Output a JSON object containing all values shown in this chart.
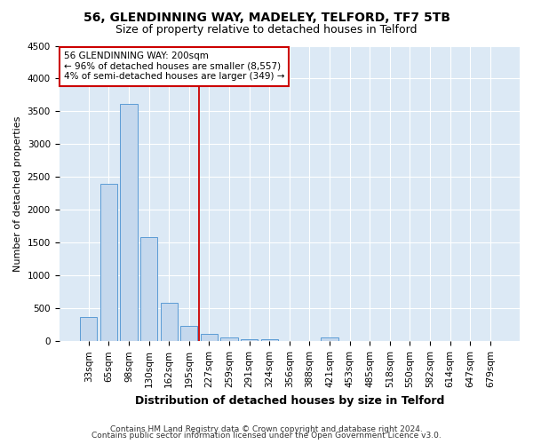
{
  "title1": "56, GLENDINNING WAY, MADELEY, TELFORD, TF7 5TB",
  "title2": "Size of property relative to detached houses in Telford",
  "xlabel": "Distribution of detached houses by size in Telford",
  "ylabel": "Number of detached properties",
  "categories": [
    "33sqm",
    "65sqm",
    "98sqm",
    "130sqm",
    "162sqm",
    "195sqm",
    "227sqm",
    "259sqm",
    "291sqm",
    "324sqm",
    "356sqm",
    "388sqm",
    "421sqm",
    "453sqm",
    "485sqm",
    "518sqm",
    "550sqm",
    "582sqm",
    "614sqm",
    "647sqm",
    "679sqm"
  ],
  "values": [
    370,
    2400,
    3620,
    1580,
    580,
    230,
    110,
    60,
    35,
    35,
    0,
    0,
    55,
    0,
    0,
    0,
    0,
    0,
    0,
    0,
    0
  ],
  "bar_color": "#c5d8ed",
  "bar_edge_color": "#5b9bd5",
  "vline_x": 5.5,
  "vline_color": "#cc0000",
  "annotation_line1": "56 GLENDINNING WAY: 200sqm",
  "annotation_line2": "← 96% of detached houses are smaller (8,557)",
  "annotation_line3": "4% of semi-detached houses are larger (349) →",
  "annotation_box_color": "white",
  "annotation_box_edge": "#cc0000",
  "ylim": [
    0,
    4500
  ],
  "yticks": [
    0,
    500,
    1000,
    1500,
    2000,
    2500,
    3000,
    3500,
    4000,
    4500
  ],
  "background_color": "#dce9f5",
  "grid_color": "white",
  "footnote1": "Contains HM Land Registry data © Crown copyright and database right 2024.",
  "footnote2": "Contains public sector information licensed under the Open Government Licence v3.0.",
  "title1_fontsize": 10,
  "title2_fontsize": 9,
  "xlabel_fontsize": 9,
  "ylabel_fontsize": 8,
  "tick_fontsize": 7.5,
  "annot_fontsize": 7.5,
  "footnote_fontsize": 6.5
}
